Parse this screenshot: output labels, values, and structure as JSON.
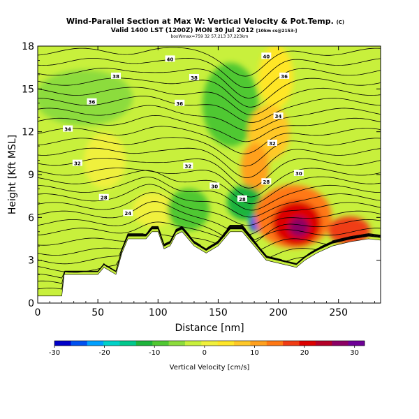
{
  "chart_data": {
    "type": "heatmap",
    "title": "Wind-Parallel Section at Max W: Vertical Velocity & Pot.Temp.",
    "title_mark": "(C)",
    "subtitle": "Valid 1400 LST (1200Z) MON 30 Jul 2012",
    "subtitle_tag": "[10km cs@2153-]",
    "subtitle2": "boxWmax=759 32 57,213 37,223km",
    "xlabel": "Distance [nm]",
    "ylabel": "Height [Kft MSL]",
    "xlim": [
      0,
      285
    ],
    "ylim": [
      0,
      18
    ],
    "xticks": [
      "0",
      "50",
      "100",
      "150",
      "200",
      "250"
    ],
    "yticks": [
      "0",
      "3",
      "6",
      "9",
      "12",
      "15",
      "18"
    ],
    "colorbar": {
      "label": "Vertical Velocity [cm/s]",
      "range": [
        -30,
        32
      ],
      "ticks": [
        "-30",
        "-20",
        "-10",
        "0",
        "10",
        "20",
        "30"
      ],
      "colors": [
        "#0000c8",
        "#0050f0",
        "#00a0ff",
        "#00d2c8",
        "#00c88c",
        "#1eb43c",
        "#50c832",
        "#8cdc3c",
        "#c8f03c",
        "#f0f03c",
        "#ffe628",
        "#ffc828",
        "#ffa01e",
        "#ff7814",
        "#f03c14",
        "#dc0000",
        "#b40028",
        "#8c0064",
        "#6e0096"
      ]
    },
    "contour_labels": [
      "40",
      "40",
      "38",
      "38",
      "36",
      "36",
      "36",
      "34",
      "34",
      "32",
      "32",
      "32",
      "30",
      "30",
      "28",
      "28",
      "28",
      "24"
    ],
    "terrain": [
      [
        0,
        0.5
      ],
      [
        20,
        0.5
      ],
      [
        22,
        2
      ],
      [
        50,
        2
      ],
      [
        55,
        2.5
      ],
      [
        65,
        2
      ],
      [
        70,
        3.5
      ],
      [
        75,
        4.5
      ],
      [
        90,
        4.5
      ],
      [
        95,
        5
      ],
      [
        100,
        5
      ],
      [
        105,
        3.8
      ],
      [
        110,
        4
      ],
      [
        115,
        4.8
      ],
      [
        120,
        5
      ],
      [
        130,
        4
      ],
      [
        140,
        3.5
      ],
      [
        150,
        4
      ],
      [
        160,
        5
      ],
      [
        170,
        5
      ],
      [
        175,
        4.5
      ],
      [
        180,
        4
      ],
      [
        185,
        3.5
      ],
      [
        190,
        3
      ],
      [
        200,
        2.8
      ],
      [
        210,
        2.6
      ],
      [
        215,
        2.5
      ],
      [
        222,
        3
      ],
      [
        232,
        3.5
      ],
      [
        245,
        4
      ],
      [
        260,
        4.3
      ],
      [
        275,
        4.5
      ],
      [
        285,
        4.4
      ]
    ]
  }
}
